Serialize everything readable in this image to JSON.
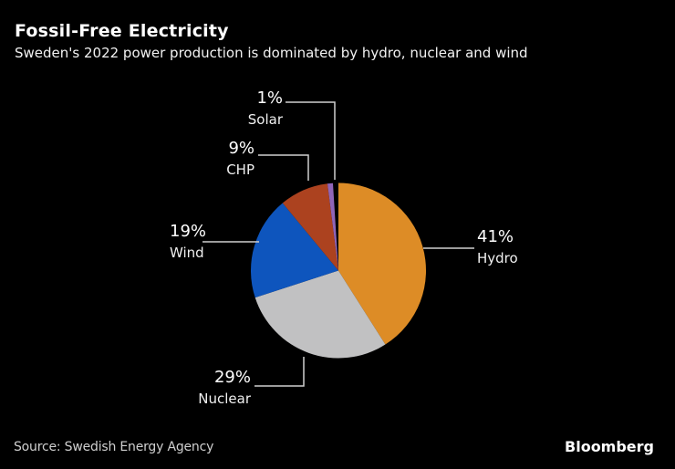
{
  "header": {
    "title": "Fossil-Free Electricity",
    "subtitle": "Sweden's 2022 power production is dominated by hydro, nuclear and wind"
  },
  "chart_data": {
    "type": "pie",
    "title": "Fossil-Free Electricity",
    "subtitle": "Sweden's 2022 power production is dominated by hydro, nuclear and wind",
    "unit": "percent",
    "start_angle": "12 o'clock",
    "direction": "clockwise",
    "slices": [
      {
        "label": "Hydro",
        "value": 41,
        "display": "41%",
        "color": "#DD8C26"
      },
      {
        "label": "Nuclear",
        "value": 29,
        "display": "29%",
        "color": "#C1C1C2"
      },
      {
        "label": "Wind",
        "value": 19,
        "display": "19%",
        "color": "#0E55BD"
      },
      {
        "label": "CHP",
        "value": 9,
        "display": "9%",
        "color": "#AC421F"
      },
      {
        "label": "Solar",
        "value": 1,
        "display": "1%",
        "color": "#9065B8"
      }
    ],
    "legend_position": "callout-labels-around-pie",
    "background": "#000000",
    "leader_line_color": "#CFCFCF"
  },
  "footer": {
    "source": "Source: Swedish Energy Agency",
    "brand": "Bloomberg"
  }
}
